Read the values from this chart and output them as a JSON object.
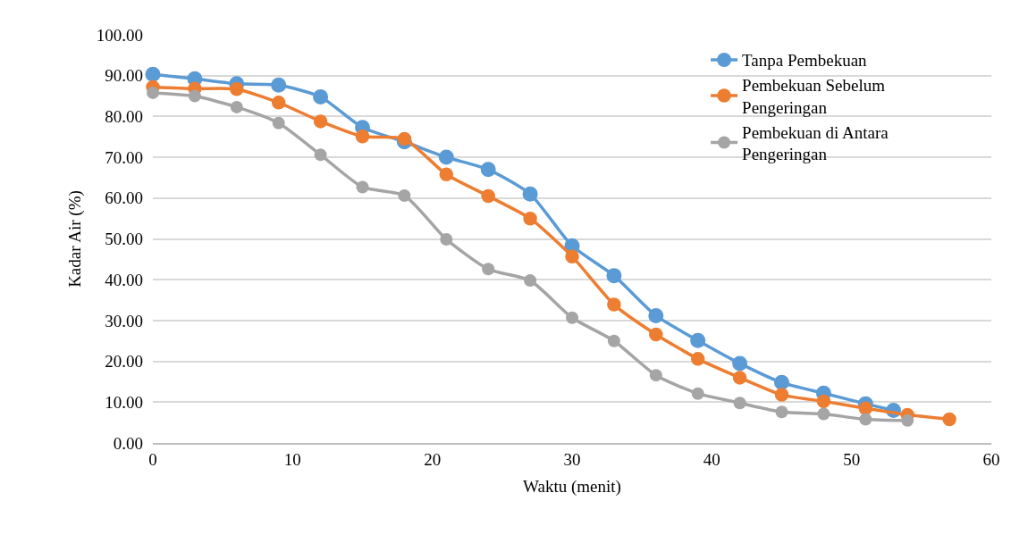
{
  "chart_data": {
    "type": "line",
    "xlabel": "Waktu (menit)",
    "ylabel": "Kadar Air (%)",
    "xlim": [
      0,
      60
    ],
    "xticks": [
      0,
      10,
      20,
      30,
      40,
      50,
      60
    ],
    "ylim": [
      0,
      100
    ],
    "yticks": [
      {
        "value": 0,
        "label": "0.00"
      },
      {
        "value": 10,
        "label": "10.00"
      },
      {
        "value": 20,
        "label": "20.00"
      },
      {
        "value": 30,
        "label": "30.00"
      },
      {
        "value": 40,
        "label": "40.00"
      },
      {
        "value": 50,
        "label": "50.00"
      },
      {
        "value": 60,
        "label": "60.00"
      },
      {
        "value": 70,
        "label": "70.00"
      },
      {
        "value": 80,
        "label": "80.00"
      },
      {
        "value": 90,
        "label": "90.00"
      },
      {
        "value": 100,
        "label": "100.00"
      }
    ],
    "grid": "y",
    "legend": "top right",
    "marker": "circle",
    "line_style": "solid",
    "series": [
      {
        "name": "Tanpa Pembekuan",
        "color": "#5b9bd5",
        "x": [
          0,
          3,
          6,
          9,
          12,
          15,
          18,
          21,
          24,
          27,
          30,
          33,
          36,
          39,
          42,
          45,
          48,
          51,
          53
        ],
        "values": [
          90.3,
          89.2,
          88,
          87.7,
          84.8,
          77.3,
          73.8,
          70,
          67,
          61,
          48.3,
          41,
          31.2,
          25.1,
          19.5,
          14.8,
          12.2,
          9.6,
          8
        ]
      },
      {
        "name": "Pembekuan Sebelum Pengeringan",
        "color": "#ed7d31",
        "x": [
          0,
          3,
          6,
          9,
          12,
          15,
          18,
          21,
          24,
          27,
          30,
          33,
          36,
          39,
          42,
          45,
          48,
          51,
          54,
          57
        ],
        "values": [
          87.2,
          86.8,
          86.7,
          83.4,
          78.8,
          75.1,
          74.5,
          65.8,
          60.5,
          55,
          45.7,
          33.9,
          26.6,
          20.6,
          16,
          11.8,
          10.2,
          8.5,
          6.9,
          5.8
        ]
      },
      {
        "name": "Pembekuan di Antara Pengeringan",
        "color": "#a5a5a5",
        "x": [
          0,
          3,
          6,
          9,
          12,
          15,
          18,
          21,
          24,
          27,
          30,
          33,
          36,
          39,
          42,
          45,
          48,
          51,
          54
        ],
        "values": [
          85.8,
          85,
          82.3,
          78.4,
          70.6,
          62.7,
          60.6,
          49.9,
          42.6,
          39.8,
          30.7,
          25,
          16.6,
          12.1,
          9.8,
          7.6,
          7.1,
          5.8,
          5.5
        ]
      }
    ]
  }
}
